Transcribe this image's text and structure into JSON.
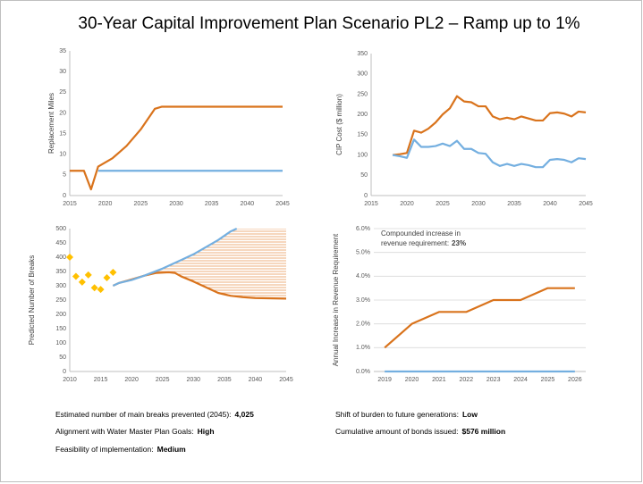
{
  "title": "30-Year Capital Improvement Plan Scenario PL2 – Ramp up to 1%",
  "chart_data": [
    {
      "type": "line",
      "ylabel": "Replacement Miles",
      "xlim": [
        2015,
        2045
      ],
      "xticks": [
        2015,
        2020,
        2025,
        2030,
        2035,
        2040,
        2045
      ],
      "ylim": [
        0,
        35
      ],
      "yticks": [
        0,
        5,
        10,
        15,
        20,
        25,
        30,
        35
      ],
      "grid": false,
      "series": [
        {
          "color": "#d9731c",
          "x": [
            2015,
            2017,
            2018,
            2019,
            2020,
            2021,
            2022,
            2023,
            2024,
            2025,
            2026,
            2027,
            2028,
            2045
          ],
          "values": [
            6,
            6,
            1.5,
            7,
            8,
            9,
            10.5,
            12,
            14,
            16,
            18.5,
            21,
            21.5,
            21.5
          ]
        },
        {
          "color": "#74afe0",
          "x": [
            2019,
            2045
          ],
          "values": [
            6,
            6
          ]
        }
      ]
    },
    {
      "type": "line",
      "ylabel": "CIP Cost ($ million)",
      "xlim": [
        2015,
        2045
      ],
      "xticks": [
        2015,
        2020,
        2025,
        2030,
        2035,
        2040,
        2045
      ],
      "ylim": [
        0,
        350
      ],
      "yticks": [
        0,
        50,
        100,
        150,
        200,
        250,
        300,
        350
      ],
      "grid": false,
      "x": [
        2018,
        2019,
        2020,
        2021,
        2022,
        2023,
        2024,
        2025,
        2026,
        2027,
        2028,
        2029,
        2030,
        2031,
        2032,
        2033,
        2034,
        2035,
        2036,
        2037,
        2038,
        2039,
        2040,
        2041,
        2042,
        2043,
        2044,
        2045
      ],
      "series": [
        {
          "color": "#d9731c",
          "values": [
            100,
            102,
            105,
            160,
            155,
            165,
            180,
            200,
            215,
            245,
            232,
            230,
            220,
            220,
            195,
            188,
            192,
            188,
            195,
            190,
            185,
            185,
            203,
            205,
            202,
            195,
            207,
            205
          ]
        },
        {
          "color": "#74afe0",
          "values": [
            100,
            97,
            93,
            138,
            120,
            120,
            122,
            128,
            122,
            135,
            115,
            115,
            105,
            103,
            82,
            73,
            78,
            73,
            78,
            75,
            70,
            70,
            88,
            90,
            88,
            82,
            92,
            90
          ]
        }
      ]
    },
    {
      "type": "line",
      "ylabel": "Predicted Number of Breaks",
      "xlim": [
        2010,
        2045
      ],
      "xticks": [
        2010,
        2015,
        2020,
        2025,
        2030,
        2035,
        2040,
        2045
      ],
      "ylim": [
        0,
        500
      ],
      "yticks": [
        0,
        50,
        100,
        150,
        200,
        250,
        300,
        350,
        400,
        450,
        500
      ],
      "grid": false,
      "hatch": true,
      "series": [
        {
          "color": "#d9731c",
          "x": [
            2017,
            2018,
            2020,
            2022,
            2024,
            2026,
            2027,
            2028,
            2030,
            2032,
            2034,
            2036,
            2038,
            2040,
            2045
          ],
          "values": [
            300,
            310,
            322,
            335,
            345,
            347,
            345,
            333,
            315,
            295,
            275,
            265,
            260,
            257,
            255
          ]
        },
        {
          "color": "#74afe0",
          "x": [
            2017,
            2018,
            2020,
            2022,
            2025,
            2028,
            2030,
            2032,
            2034,
            2036,
            2037
          ],
          "values": [
            300,
            310,
            320,
            335,
            360,
            390,
            410,
            435,
            460,
            490,
            500
          ]
        },
        {
          "type": "scatter",
          "color": "#ffc000",
          "x": [
            2010,
            2011,
            2012,
            2013,
            2014,
            2015,
            2016,
            2017
          ],
          "values": [
            400,
            333,
            313,
            338,
            293,
            287,
            328,
            347
          ]
        }
      ]
    },
    {
      "type": "line",
      "ylabel": "Annual Increase in Revenue Requirement",
      "xlim": [
        2018.6,
        2026.4
      ],
      "xticks": [
        2019,
        2020,
        2021,
        2022,
        2023,
        2024,
        2025,
        2026
      ],
      "ylim": [
        0,
        6
      ],
      "yticks": [
        {
          "value": 0,
          "label": "0.0%"
        },
        {
          "value": 1,
          "label": "1.0%"
        },
        {
          "value": 2,
          "label": "2.0%"
        },
        {
          "value": 3,
          "label": "3.0%"
        },
        {
          "value": 4,
          "label": "4.0%"
        },
        {
          "value": 5,
          "label": "5.0%"
        },
        {
          "value": 6,
          "label": "6.0%"
        }
      ],
      "grid": true,
      "annotation": {
        "lines": [
          "Compounded increase in",
          "revenue requirement:"
        ],
        "value": "23%"
      },
      "series": [
        {
          "color": "#d9731c",
          "x": [
            2019,
            2020,
            2021,
            2022,
            2023,
            2024,
            2025,
            2026
          ],
          "values": [
            1,
            2,
            2.5,
            2.5,
            3,
            3,
            3.5,
            3.5
          ]
        },
        {
          "color": "#74afe0",
          "x": [
            2019,
            2020,
            2021,
            2022,
            2023,
            2024,
            2025,
            2026
          ],
          "values": [
            0,
            0,
            0,
            0,
            0,
            0,
            0,
            0
          ]
        }
      ]
    }
  ],
  "stats": [
    {
      "label": "Estimated number of main breaks prevented (2045):",
      "value": "4,025"
    },
    {
      "label": "Alignment with Water Master Plan Goals:",
      "value": "High"
    },
    {
      "label": "Feasibility of implementation:",
      "value": "Medium"
    },
    {
      "label": "Shift of burden to future generations:",
      "value": "Low"
    },
    {
      "label": "Cumulative amount of bonds issued:",
      "value": "$576 million"
    }
  ]
}
